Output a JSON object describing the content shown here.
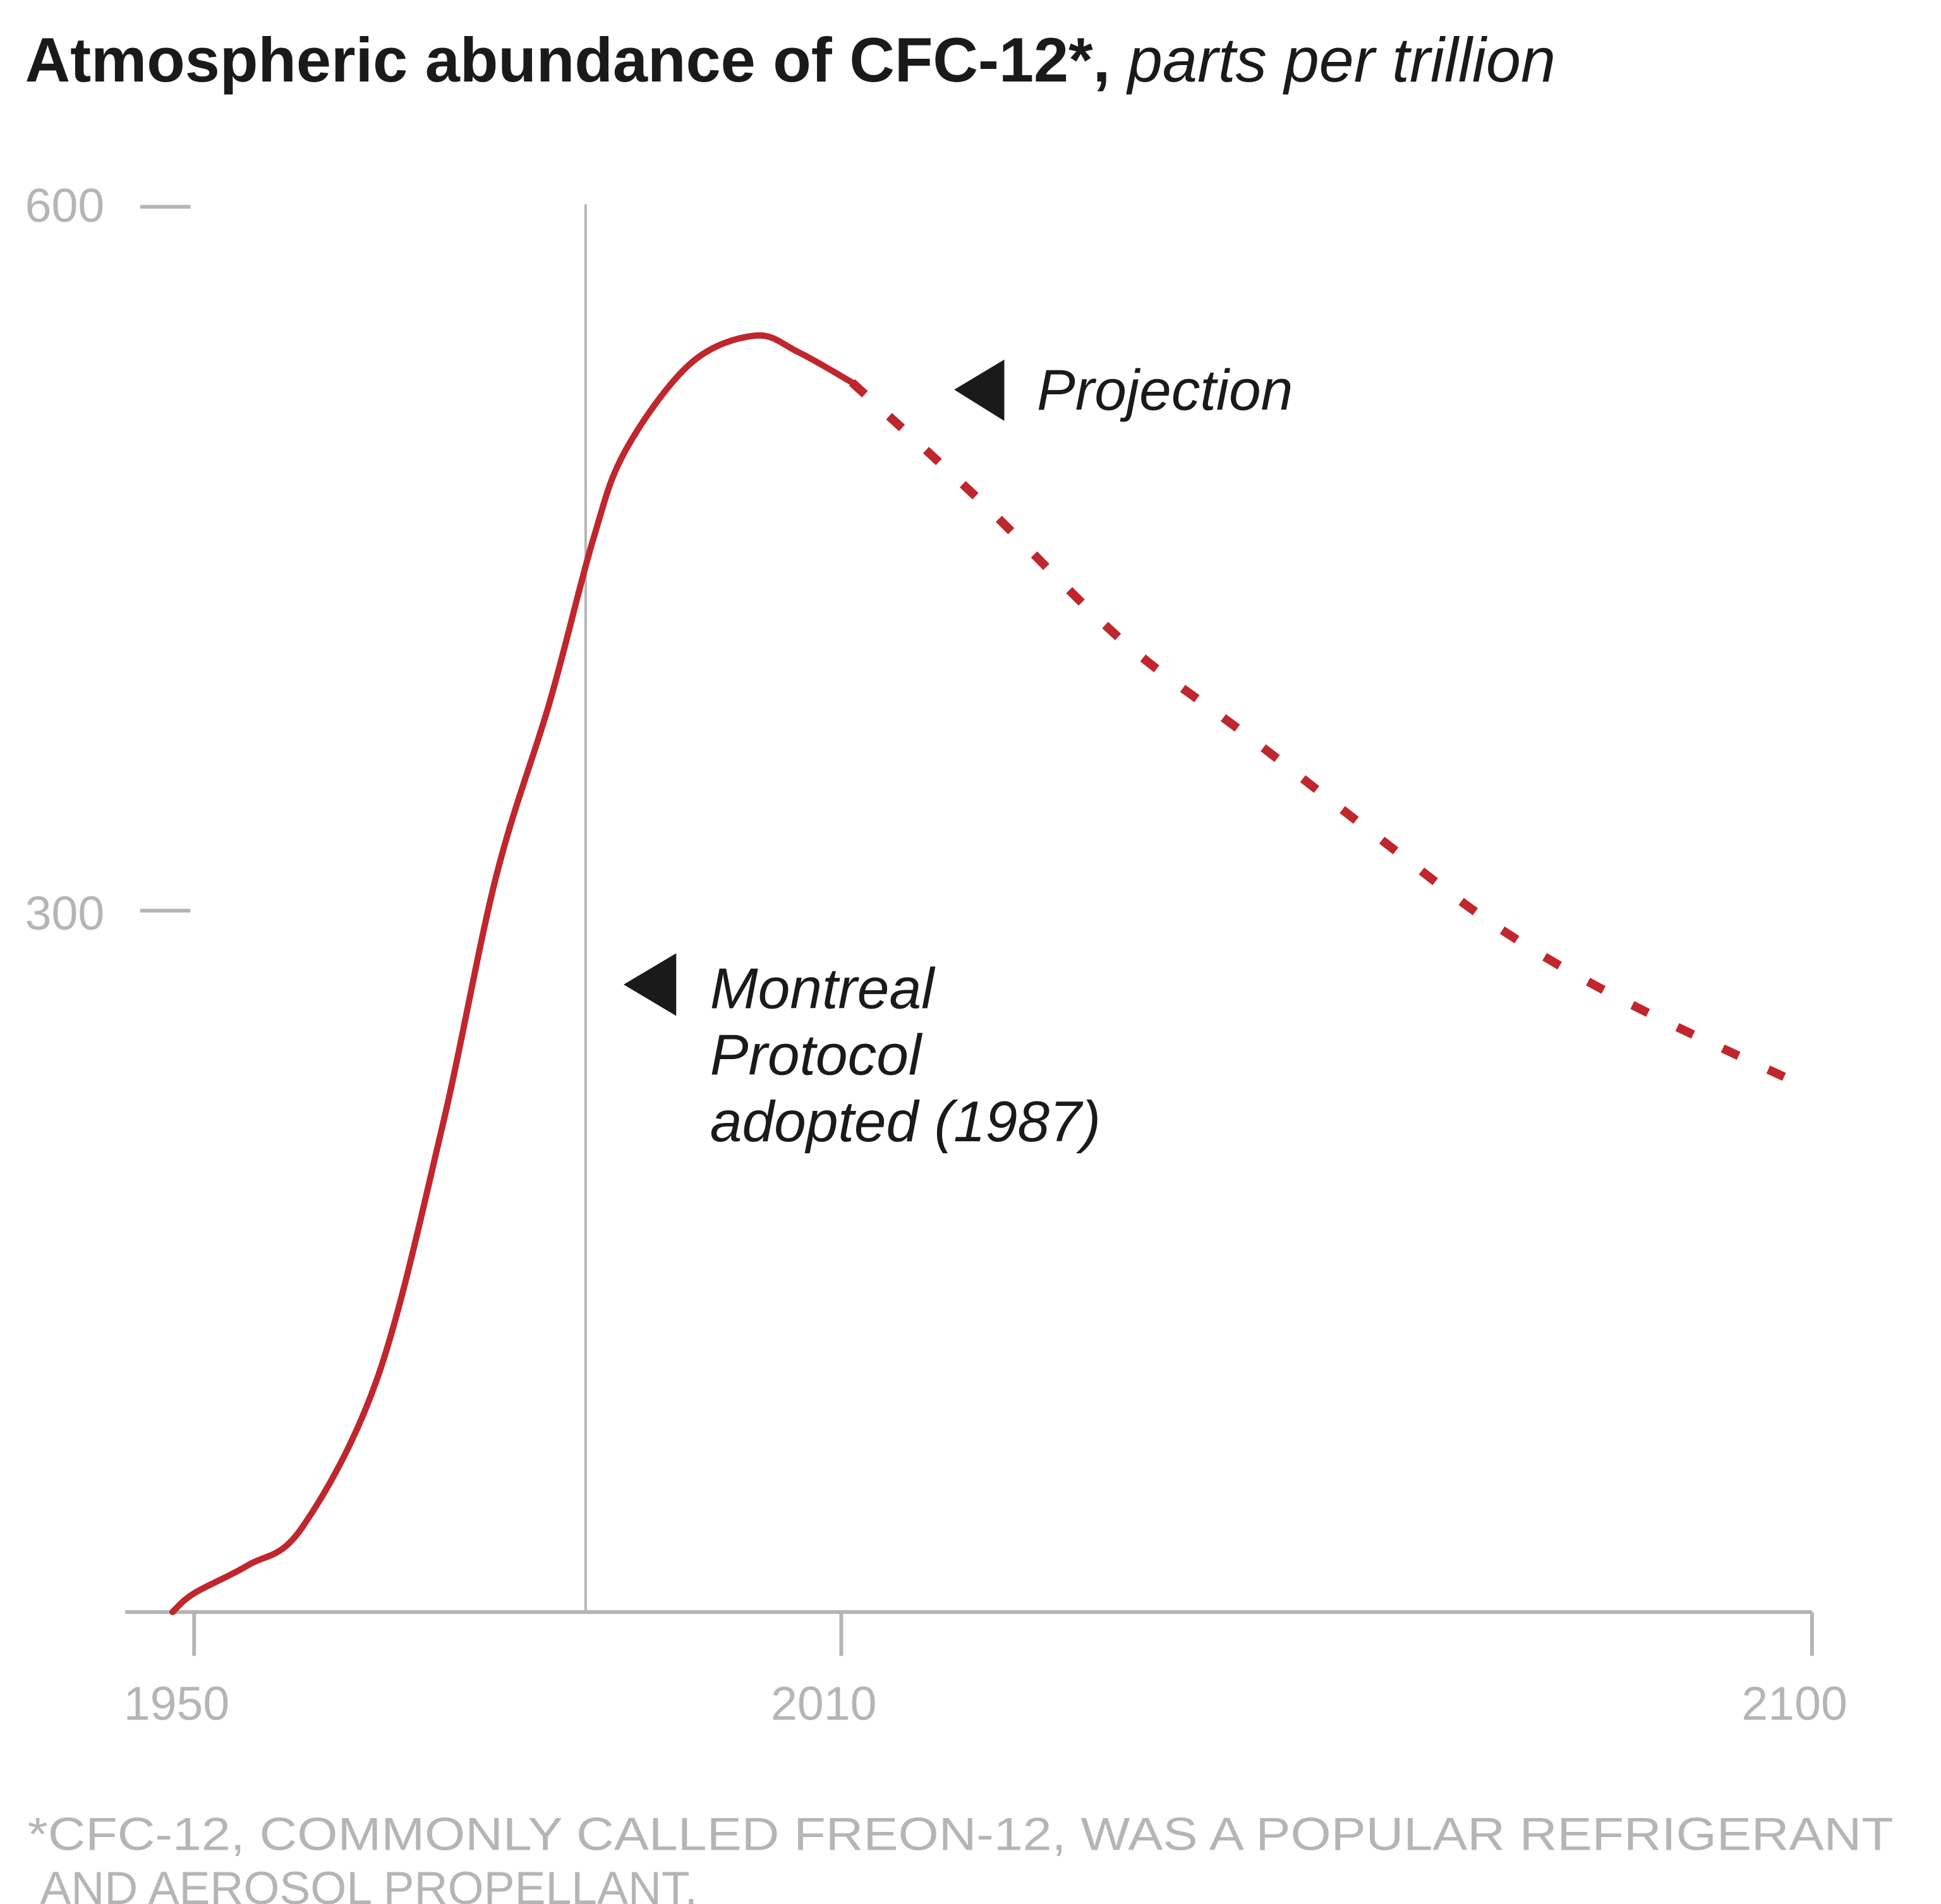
{
  "chart_data": {
    "type": "line",
    "title": "Atmospheric abundance of CFC-12*,",
    "title_unit": "parts per trillion",
    "xlabel": "",
    "ylabel": "",
    "xlim": [
      1950,
      2100
    ],
    "ylim": [
      0,
      600
    ],
    "x_ticks": [
      "1950",
      "2010",
      "2100"
    ],
    "y_ticks": [
      "600",
      "300"
    ],
    "grid": false,
    "line_color": "#c0262d",
    "series": [
      {
        "style": "solid",
        "points": [
          [
            1948,
            0
          ],
          [
            1950,
            8
          ],
          [
            1955,
            20
          ],
          [
            1960,
            36
          ],
          [
            1967,
            100
          ],
          [
            1973,
            207
          ],
          [
            1978,
            314
          ],
          [
            1983,
            389
          ],
          [
            1987,
            458
          ],
          [
            1990,
            496
          ],
          [
            1996,
            533
          ],
          [
            2002,
            545
          ],
          [
            2006,
            538
          ],
          [
            2011,
            525
          ]
        ]
      },
      {
        "style": "dashed",
        "points": [
          [
            2011,
            525
          ],
          [
            2023,
            474
          ],
          [
            2036,
            415
          ],
          [
            2048,
            373
          ],
          [
            2060,
            330
          ],
          [
            2071,
            292
          ],
          [
            2083,
            260
          ],
          [
            2100,
            223
          ]
        ]
      }
    ],
    "annotations": {
      "projection": "Projection",
      "protocol_year": 1987,
      "protocol_lines": [
        "Montreal",
        "Protocol",
        "adopted (1987)"
      ]
    },
    "footnote_lines": [
      "*CFC-12, COMMONLY CALLED FREON-12, WAS A  POPULAR  REFRIGERANT",
      "AND AEROSOL PROPELLANT."
    ]
  }
}
